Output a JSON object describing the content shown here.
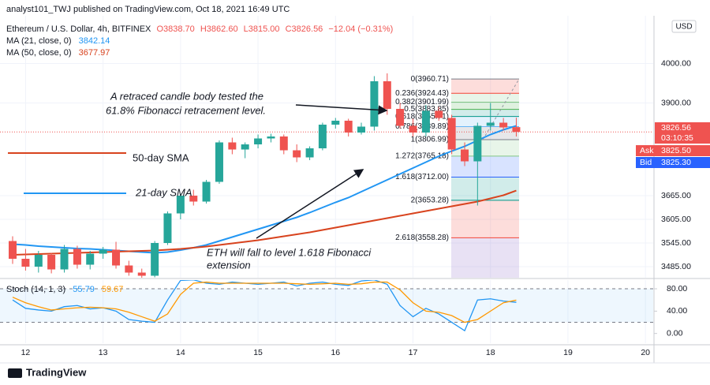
{
  "chart_data": {
    "type": "candlestick",
    "header": {
      "publisher": "analyst101_TWJ published on TradingView.com, Oct 18, 2021 16:49 UTC",
      "symbol": "Ethereum / U.S. Dollar, 4h, BITFINEX",
      "open": "O3838.70",
      "high": "H3862.60",
      "low": "L3815.00",
      "close": "C3826.56",
      "change": "−12.04 (−0.31%)",
      "currency": "USD",
      "countdown": "03:10:35",
      "ask_label": "Ask",
      "ask": "3825.50",
      "bid_label": "Bid",
      "bid": "3825.30",
      "footer": "TradingView"
    },
    "annotations": {
      "retrace": [
        "A retraced candle body tested the",
        "61.8% Fibonacci retracement level."
      ],
      "target": [
        "ETH will fall to level 1.618 Fibonacci",
        "extension"
      ],
      "sma50": "50-day SMA",
      "sma21": "21-day SMA"
    },
    "up_color": "#26a69a",
    "down_color": "#ef5350",
    "x": [
      11.833,
      12,
      12.167,
      12.333,
      12.5,
      12.667,
      12.833,
      13,
      13.167,
      13.333,
      13.5,
      13.667,
      13.833,
      14,
      14.167,
      14.333,
      14.5,
      14.667,
      14.833,
      15,
      15.167,
      15.333,
      15.5,
      15.667,
      15.833,
      16,
      16.167,
      16.333,
      16.5,
      16.667,
      16.833,
      17,
      17.167,
      17.333,
      17.5,
      17.667,
      17.833,
      18,
      18.167,
      18.333
    ],
    "open": [
      3550,
      3505,
      3485,
      3515,
      3478,
      3530,
      3490,
      3518,
      3528,
      3488,
      3470,
      3462,
      3545,
      3620,
      3665,
      3650,
      3700,
      3800,
      3782,
      3795,
      3810,
      3815,
      3780,
      3762,
      3785,
      3845,
      3855,
      3825,
      3840,
      3955,
      3885,
      3842,
      3825,
      3880,
      3862,
      3782,
      3752,
      3842,
      3850,
      3838.7
    ],
    "high": [
      3562,
      3530,
      3525,
      3520,
      3540,
      3538,
      3525,
      3535,
      3548,
      3500,
      3480,
      3550,
      3625,
      3670,
      3680,
      3705,
      3805,
      3812,
      3800,
      3820,
      3822,
      3820,
      3795,
      3790,
      3850,
      3862,
      3860,
      3850,
      3968,
      3975,
      3900,
      3860,
      3895,
      3890,
      3870,
      3800,
      3850,
      3900,
      3862,
      3862.6
    ],
    "low": [
      3492,
      3475,
      3470,
      3468,
      3470,
      3480,
      3478,
      3505,
      3480,
      3462,
      3455,
      3458,
      3540,
      3605,
      3640,
      3645,
      3695,
      3770,
      3760,
      3785,
      3800,
      3770,
      3750,
      3755,
      3780,
      3835,
      3815,
      3820,
      3830,
      3870,
      3835,
      3815,
      3815,
      3855,
      3770,
      3740,
      3640,
      3830,
      3830,
      3815
    ],
    "close": [
      3505,
      3485,
      3515,
      3478,
      3530,
      3490,
      3518,
      3528,
      3488,
      3470,
      3462,
      3545,
      3620,
      3665,
      3650,
      3700,
      3800,
      3782,
      3795,
      3810,
      3815,
      3780,
      3762,
      3785,
      3845,
      3855,
      3825,
      3840,
      3955,
      3885,
      3842,
      3825,
      3880,
      3862,
      3782,
      3752,
      3842,
      3850,
      3838,
      3826.56
    ],
    "series": [
      {
        "name": "MA (21, close, 0)",
        "color": "#2196f3",
        "values": [
          3542,
          3540,
          3537,
          3535,
          3533,
          3531,
          3530,
          3528,
          3526,
          3524,
          3522,
          3520,
          3522,
          3527,
          3533,
          3540,
          3550,
          3560,
          3570,
          3580,
          3590,
          3600,
          3610,
          3622,
          3635,
          3648,
          3660,
          3675,
          3690,
          3705,
          3720,
          3735,
          3750,
          3765,
          3778,
          3790,
          3805,
          3820,
          3832,
          3842.14
        ]
      },
      {
        "name": "MA (50, close, 0)",
        "color": "#d8431e",
        "values": [
          3515,
          3516,
          3517,
          3518,
          3519,
          3520,
          3521,
          3522,
          3523,
          3524,
          3525,
          3526,
          3528,
          3530,
          3533,
          3536,
          3540,
          3544,
          3548,
          3552,
          3557,
          3562,
          3567,
          3572,
          3578,
          3584,
          3590,
          3596,
          3602,
          3608,
          3614,
          3620,
          3626,
          3632,
          3638,
          3644,
          3650,
          3658,
          3666,
          3677.97
        ]
      }
    ],
    "fib_levels": [
      {
        "value": 3960.71,
        "label": "0(3960.71)",
        "color": "#787b86"
      },
      {
        "value": 3924.43,
        "label": "0.236(3924.43)",
        "color": "#f44336"
      },
      {
        "value": 3901.99,
        "label": "0.382(3901.99)",
        "color": "#81c784"
      },
      {
        "value": 3883.85,
        "label": "0.5(3883.85)",
        "color": "#4caf50"
      },
      {
        "value": 3865.71,
        "label": "0.618(3865.71)",
        "color": "#009688"
      },
      {
        "value": 3839.89,
        "label": "0.786(3839.89)",
        "color": "#64b5f6"
      },
      {
        "value": 3806.99,
        "label": "1(3806.99)",
        "color": "#787b86"
      },
      {
        "value": 3765.18,
        "label": "1.272(3765.18)",
        "color": "#81c784"
      },
      {
        "value": 3712.0,
        "label": "1.618(3712.00)",
        "color": "#2962ff"
      },
      {
        "value": 3653.28,
        "label": "2(3653.28)",
        "color": "#009688"
      },
      {
        "value": 3558.28,
        "label": "2.618(3558.28)",
        "color": "#f44336"
      }
    ],
    "xlim": [
      11.67,
      20.1
    ],
    "xticks": [
      12,
      13,
      14,
      15,
      16,
      17,
      18,
      19,
      20
    ],
    "ylim": [
      3457,
      4121
    ],
    "yticks": [
      {
        "value": 3485,
        "label": "3485.00"
      },
      {
        "value": 3545,
        "label": "3545.00"
      },
      {
        "value": 3605,
        "label": "3605.00"
      },
      {
        "value": 3665,
        "label": "3665.00"
      },
      {
        "value": 3900,
        "label": "3900.00"
      },
      {
        "value": 4000,
        "label": "4000.00"
      }
    ],
    "grid": true,
    "stoch": {
      "name": "Stoch (14, 1, 3)",
      "k": {
        "color": "#2196f3",
        "values": [
          60,
          45,
          42,
          40,
          48,
          50,
          44,
          46,
          40,
          25,
          22,
          20,
          60,
          95,
          96,
          90,
          88,
          92,
          90,
          88,
          90,
          92,
          85,
          90,
          92,
          88,
          86,
          94,
          96,
          88,
          50,
          30,
          45,
          35,
          20,
          5,
          60,
          62,
          58,
          55.79
        ]
      },
      "d": {
        "color": "#ff9800",
        "values": [
          65,
          55,
          48,
          42,
          44,
          46,
          47,
          46,
          44,
          38,
          30,
          22,
          35,
          70,
          90,
          92,
          90,
          90,
          90,
          90,
          90,
          90,
          89,
          88,
          89,
          90,
          88,
          89,
          92,
          92,
          78,
          55,
          40,
          38,
          32,
          20,
          25,
          40,
          55,
          59.67
        ]
      },
      "bands": [
        20,
        80
      ],
      "ylim": [
        -17.4,
        95.6
      ],
      "yticks": [
        {
          "value": 0,
          "label": "0.00"
        },
        {
          "value": 40,
          "label": "40.00"
        },
        {
          "value": 80,
          "label": "80.00"
        }
      ]
    }
  }
}
